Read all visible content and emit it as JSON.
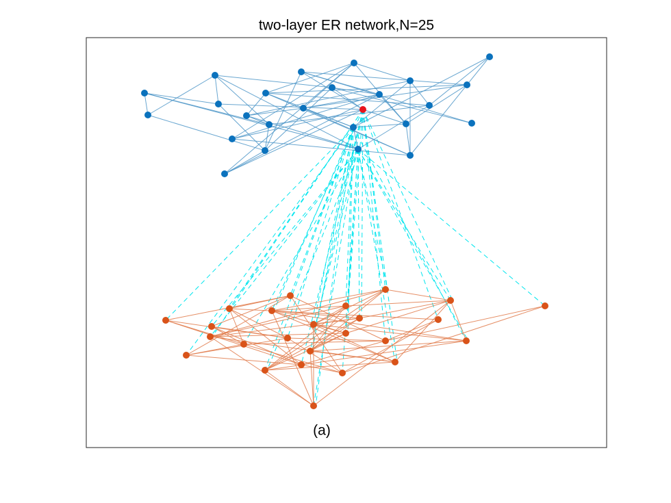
{
  "title": "two-layer ER network,N=25",
  "caption": "(a)"
}
